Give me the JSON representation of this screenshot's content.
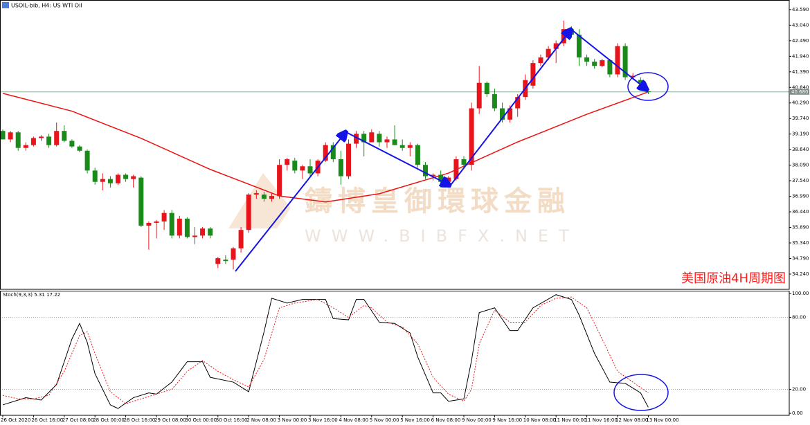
{
  "header": "USOIL-bib, H4:  US WTI Oil",
  "note": "美国原油4H周期图",
  "watermark": {
    "name": "鑄博皇御環球金融",
    "url": "WWW.BIBFX.NET"
  },
  "chart_data": [
    {
      "type": "candlestick",
      "categories": [
        "26 Oct 2020",
        null,
        null,
        null,
        "26 Oct 16:00",
        null,
        null,
        null,
        "27 Oct 08:00",
        null,
        null,
        null,
        "28 Oct 00:00",
        null,
        null,
        null,
        "28 Oct 16:00",
        null,
        null,
        null,
        "29 Oct 08:00",
        null,
        null,
        null,
        "30 Oct 00:00",
        null,
        null,
        null,
        "30 Oct 16:00",
        null,
        null,
        null,
        "2 Nov 08:00",
        null,
        null,
        null,
        "3 Nov 00:00",
        null,
        null,
        null,
        "3 Nov 16:00",
        null,
        null,
        null,
        "4 Nov 08:00",
        null,
        null,
        null,
        "5 Nov 00:00",
        null,
        null,
        null,
        "5 Nov 16:00",
        null,
        null,
        null,
        "6 Nov 08:00",
        null,
        null,
        null,
        "9 Nov 00:00",
        null,
        null,
        null,
        "9 Nov 16:00",
        null,
        null,
        null,
        "10 Nov 08:00",
        null,
        null,
        null,
        "11 Nov 00:00",
        null,
        null,
        null,
        "11 Nov 16:00",
        null,
        null,
        null,
        "12 Nov 08:00",
        null,
        null,
        null,
        "13 Nov 00:00"
      ],
      "open": [
        39.3,
        39.0,
        39.25,
        38.7,
        38.8,
        39.05,
        39.1,
        38.8,
        39.3,
        38.95,
        38.75,
        38.6,
        37.9,
        37.5,
        37.6,
        37.45,
        37.75,
        37.6,
        37.65,
        35.95,
        36.05,
        36.1,
        36.4,
        35.6,
        36.2,
        35.55,
        35.6,
        35.85,
        34.6,
        34.75,
        34.75,
        35.15,
        35.8,
        37.05,
        37.05,
        36.9,
        37.0,
        38.1,
        38.25,
        37.9,
        38.05,
        37.8,
        38.25,
        38.8,
        38.3,
        37.7,
        38.85,
        39.2,
        38.9,
        39.2,
        38.9,
        39.0,
        38.8,
        38.7,
        38.8,
        38.1,
        37.7,
        37.75,
        37.5,
        37.6,
        38.3,
        38.1,
        40.1,
        41.0,
        40.6,
        40.1,
        39.7,
        40.1,
        40.5,
        40.9,
        41.7,
        41.9,
        42.2,
        42.4,
        42.9,
        42.7,
        41.9,
        41.75,
        41.6,
        41.8,
        41.3,
        42.3,
        41.2,
        41.1,
        40.7
      ],
      "high": [
        39.35,
        39.3,
        39.3,
        38.9,
        39.1,
        39.15,
        39.2,
        39.6,
        39.5,
        39.0,
        38.8,
        38.65,
        38.0,
        37.8,
        37.7,
        37.8,
        37.8,
        37.75,
        37.7,
        36.1,
        36.15,
        36.5,
        36.5,
        36.3,
        36.25,
        35.9,
        35.9,
        35.9,
        34.85,
        34.9,
        35.2,
        35.9,
        37.1,
        37.2,
        37.15,
        37.1,
        38.3,
        38.35,
        38.35,
        38.1,
        38.3,
        38.3,
        38.9,
        38.9,
        38.6,
        39.0,
        39.3,
        39.3,
        39.35,
        39.3,
        39.1,
        39.5,
        39.0,
        38.9,
        38.85,
        38.2,
        37.8,
        37.9,
        37.7,
        38.4,
        38.4,
        40.3,
        41.6,
        41.05,
        40.8,
        40.3,
        40.2,
        40.6,
        41.3,
        41.8,
        42.0,
        42.3,
        42.5,
        43.2,
        43.0,
        42.9,
        42.0,
        41.85,
        41.85,
        41.85,
        42.4,
        42.4,
        41.35,
        41.2,
        40.75
      ],
      "low": [
        39.0,
        38.9,
        38.6,
        38.6,
        38.75,
        38.95,
        38.7,
        38.75,
        38.9,
        38.7,
        38.55,
        37.8,
        37.4,
        37.2,
        37.3,
        37.4,
        37.5,
        37.3,
        35.9,
        35.1,
        35.5,
        35.8,
        35.5,
        35.5,
        35.5,
        35.3,
        35.5,
        35.5,
        34.45,
        34.6,
        34.4,
        35.0,
        35.7,
        36.9,
        36.8,
        36.8,
        36.9,
        37.9,
        37.8,
        37.6,
        37.7,
        37.7,
        38.2,
        38.2,
        37.4,
        37.6,
        38.7,
        38.4,
        38.9,
        38.75,
        38.7,
        38.8,
        38.6,
        38.4,
        38.0,
        37.6,
        37.55,
        37.3,
        37.4,
        37.55,
        38.0,
        37.9,
        39.9,
        40.5,
        40.0,
        39.6,
        39.6,
        39.8,
        40.4,
        40.8,
        41.6,
        41.8,
        41.7,
        42.3,
        42.6,
        41.6,
        41.6,
        41.5,
        41.55,
        41.2,
        41.2,
        41.1,
        41.1,
        40.9,
        40.6
      ],
      "close": [
        39.0,
        39.25,
        38.7,
        38.8,
        39.05,
        39.1,
        38.8,
        39.3,
        38.95,
        38.75,
        38.6,
        37.9,
        37.5,
        37.6,
        37.45,
        37.75,
        37.6,
        37.7,
        35.95,
        36.05,
        36.1,
        36.4,
        35.6,
        36.2,
        35.55,
        35.6,
        35.85,
        35.6,
        34.8,
        34.7,
        35.15,
        35.8,
        37.05,
        37.1,
        36.9,
        37.0,
        38.1,
        38.3,
        37.9,
        38.05,
        37.8,
        38.25,
        38.8,
        38.3,
        37.7,
        38.85,
        39.2,
        38.9,
        39.25,
        38.9,
        39.0,
        38.8,
        38.7,
        38.8,
        38.1,
        37.7,
        37.75,
        37.5,
        37.65,
        38.3,
        38.1,
        40.1,
        41.0,
        40.6,
        40.1,
        39.7,
        40.1,
        40.5,
        41.1,
        41.7,
        41.9,
        42.2,
        42.4,
        42.9,
        42.7,
        41.9,
        41.75,
        41.6,
        41.8,
        41.3,
        42.3,
        41.2,
        41.25,
        41.0,
        40.68
      ],
      "up_color": "#e8141c",
      "down_color": "#1a8a1a",
      "ma": {
        "color": "#ee1111",
        "x": [
          0,
          9,
          18,
          27,
          36,
          42,
          49,
          58,
          67,
          76,
          84
        ],
        "values": [
          40.63,
          40.0,
          39.04,
          37.94,
          37.0,
          36.79,
          37.08,
          37.81,
          38.91,
          39.89,
          40.68
        ]
      },
      "last_price": {
        "value": 40.68,
        "label": "40.680"
      },
      "ylim": [
        33.7,
        43.93
      ],
      "yticks": [
        {
          "value": 43.59,
          "label": "43.590"
        },
        {
          "value": 43.04,
          "label": "43.040"
        },
        {
          "value": 42.49,
          "label": "42.490"
        },
        {
          "value": 41.94,
          "label": "41.940"
        },
        {
          "value": 41.39,
          "label": "41.390"
        },
        {
          "value": 40.84,
          "label": "40.840"
        },
        {
          "value": 40.29,
          "label": "40.290"
        },
        {
          "value": 39.74,
          "label": "39.740"
        },
        {
          "value": 39.19,
          "label": "39.190"
        },
        {
          "value": 38.64,
          "label": "38.640"
        },
        {
          "value": 38.09,
          "label": "38.090"
        },
        {
          "value": 37.54,
          "label": "37.540"
        },
        {
          "value": 36.99,
          "label": "36.990"
        },
        {
          "value": 36.44,
          "label": "36.440"
        },
        {
          "value": 35.89,
          "label": "35.890"
        },
        {
          "value": 35.34,
          "label": "35.340"
        },
        {
          "value": 34.79,
          "label": "34.790"
        },
        {
          "value": 34.24,
          "label": "34.240"
        }
      ]
    },
    {
      "type": "line",
      "title": "Stoch(9,3,3) 5.31 17.22",
      "series": [
        {
          "color": "#000000",
          "dashed": false,
          "x": [
            0,
            2,
            3,
            5,
            7,
            9,
            10,
            11,
            12,
            14,
            15,
            17,
            19,
            20,
            22,
            24,
            26,
            27,
            30,
            32,
            34,
            35,
            37,
            39,
            42,
            43,
            45,
            46,
            47,
            49,
            51,
            53,
            54,
            56,
            57,
            58,
            60,
            61,
            62,
            64,
            66,
            67,
            69,
            72,
            74,
            75,
            77,
            79,
            81,
            83,
            84
          ],
          "values": [
            7,
            11,
            13,
            11,
            24,
            62,
            75,
            59,
            33,
            7,
            4,
            13,
            17,
            16,
            26,
            43,
            43,
            30,
            26,
            18,
            68,
            96,
            92,
            95,
            95,
            79,
            78,
            95,
            95,
            76,
            75,
            67,
            47,
            17,
            17,
            10,
            12,
            44,
            84,
            88,
            69,
            69,
            88,
            99,
            95,
            82,
            50,
            26,
            25,
            17,
            5
          ]
        },
        {
          "color": "#ee1111",
          "dashed": true,
          "x": [
            0,
            2,
            4,
            6,
            8,
            10,
            11,
            12,
            14,
            16,
            18,
            20,
            22,
            24,
            26,
            28,
            30,
            32,
            34,
            36,
            38,
            41,
            43,
            45,
            47,
            48,
            50,
            52,
            54,
            56,
            58,
            60,
            61,
            62,
            64,
            66,
            68,
            70,
            72,
            74,
            76,
            78,
            80,
            82,
            84
          ],
          "values": [
            15,
            12,
            12,
            15,
            35,
            65,
            68,
            50,
            18,
            8,
            12,
            16,
            20,
            35,
            44,
            35,
            28,
            22,
            45,
            88,
            92,
            95,
            88,
            80,
            90,
            88,
            76,
            72,
            58,
            30,
            16,
            10,
            20,
            58,
            86,
            76,
            76,
            90,
            96,
            97,
            88,
            62,
            35,
            26,
            17
          ]
        }
      ],
      "levels": [
        80,
        20
      ],
      "ylim": [
        -1.7,
        102.3
      ],
      "yticks": [
        {
          "value": 100,
          "label": "100.00"
        },
        {
          "value": 80,
          "label": "80.00"
        },
        {
          "value": 20,
          "label": "20.00"
        },
        {
          "value": 0,
          "label": "0.00"
        }
      ]
    }
  ]
}
